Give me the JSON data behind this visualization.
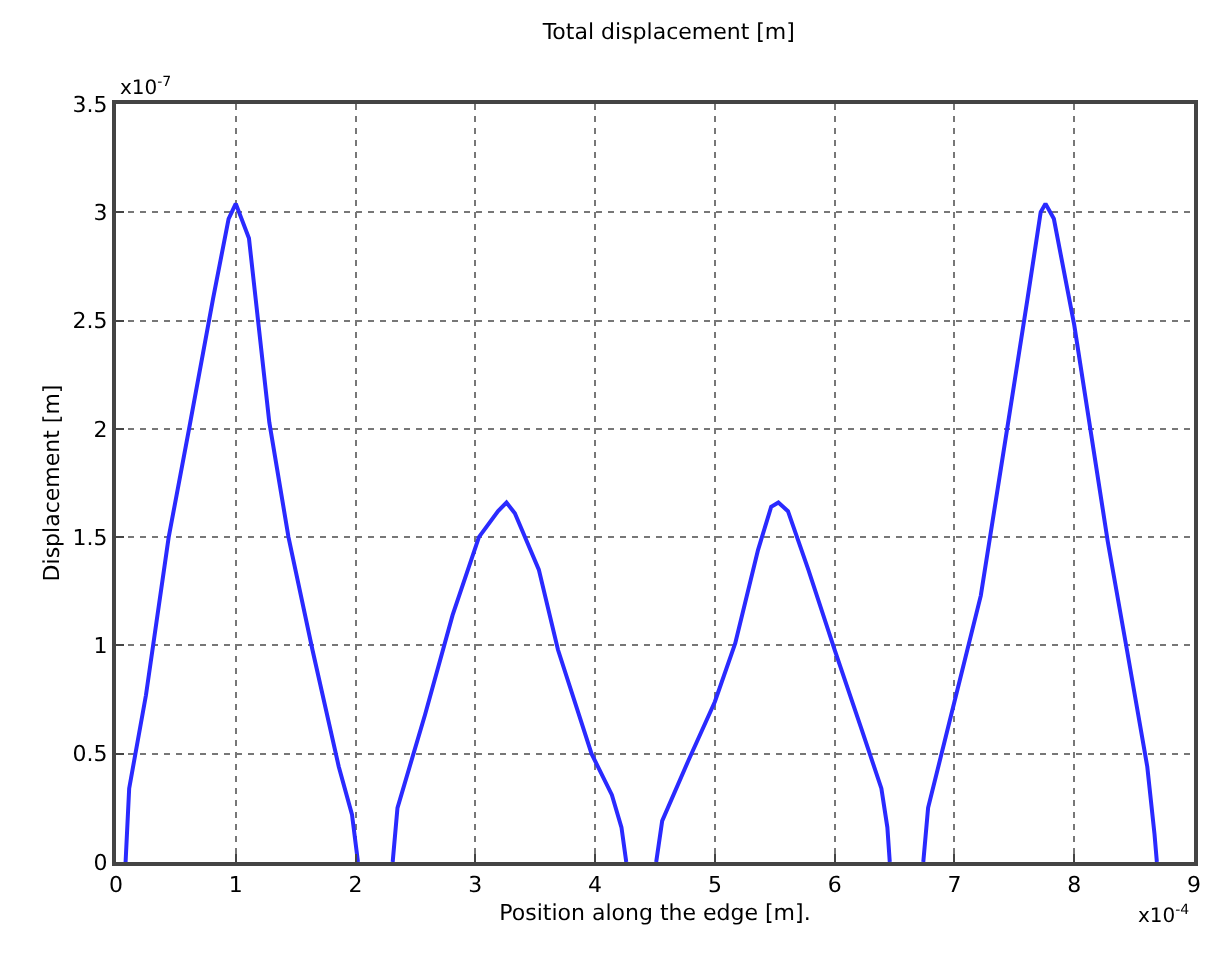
{
  "chart_data": {
    "type": "line",
    "title": "Total displacement [m]",
    "xlabel": "Position along the edge [m].",
    "ylabel": "Displacement [m]",
    "annotations": [
      "x10$^{-7}$",
      "x10$^{-4}$"
    ],
    "x": [
      0.08,
      0.11,
      0.25,
      0.44,
      0.61,
      0.81,
      0.94,
      1.0,
      1.11,
      1.28,
      1.44,
      1.64,
      1.86,
      1.97,
      2.02,
      2.15,
      2.31,
      2.35,
      2.58,
      2.81,
      3.03,
      3.19,
      3.26,
      3.33,
      3.53,
      3.69,
      3.97,
      4.14,
      4.22,
      4.26,
      4.4,
      4.51,
      4.56,
      4.78,
      5.0,
      5.17,
      5.36,
      5.47,
      5.53,
      5.61,
      5.78,
      6.0,
      6.22,
      6.39,
      6.44,
      6.46,
      6.6,
      6.74,
      6.78,
      7.0,
      7.22,
      7.44,
      7.61,
      7.72,
      7.76,
      7.83,
      8.0,
      8.28,
      8.44,
      8.61,
      8.67,
      8.69
    ],
    "series": [
      {
        "color": "#2a2aff",
        "values": [
          0,
          0.34,
          0.77,
          1.5,
          2.0,
          2.6,
          2.97,
          3.04,
          2.88,
          2.03,
          1.5,
          0.98,
          0.44,
          0.22,
          0,
          null,
          0,
          0.25,
          0.68,
          1.14,
          1.5,
          1.62,
          1.66,
          1.61,
          1.35,
          0.98,
          0.5,
          0.31,
          0.16,
          0,
          null,
          0,
          0.19,
          0.47,
          0.74,
          1.01,
          1.44,
          1.64,
          1.66,
          1.62,
          1.35,
          0.98,
          0.62,
          0.34,
          0.16,
          0,
          null,
          0,
          0.25,
          0.74,
          1.23,
          2.0,
          2.6,
          3.0,
          3.04,
          2.97,
          2.48,
          1.48,
          0.98,
          0.44,
          0.13,
          0
        ]
      }
    ],
    "xlim": [
      0,
      9
    ],
    "xticks": [
      0,
      1,
      2,
      3,
      4,
      5,
      6,
      7,
      8,
      9
    ],
    "ylim": [
      0,
      3.5
    ],
    "yticks": [
      0,
      0.5,
      1,
      1.5,
      2,
      2.5,
      3,
      3.5
    ],
    "grid": true,
    "legend": false,
    "marker": "none",
    "line_style": "solid"
  }
}
